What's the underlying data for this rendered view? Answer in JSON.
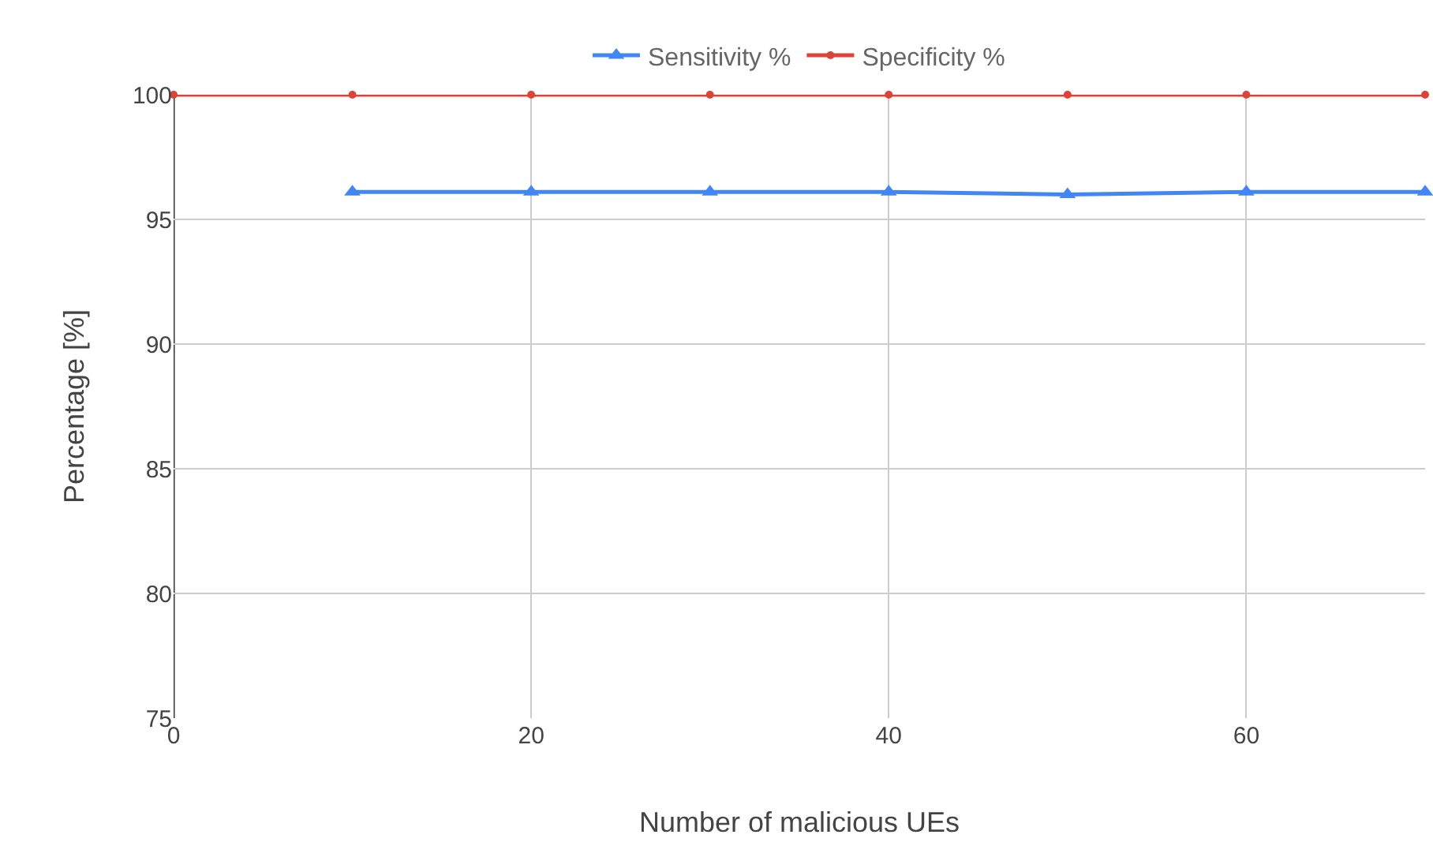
{
  "chart_data": {
    "type": "line",
    "xlabel": "Number of malicious UEs",
    "ylabel": "Percentage [%]",
    "series": [
      {
        "name": "Sensitivity %",
        "color": "#4285f4",
        "marker": "triangle",
        "x": [
          10,
          20,
          30,
          40,
          50,
          60,
          70
        ],
        "values": [
          96.1,
          96.1,
          96.1,
          96.1,
          96.0,
          96.1,
          96.1
        ]
      },
      {
        "name": "Specificity %",
        "color": "#db4437",
        "marker": "circle",
        "x": [
          0,
          10,
          20,
          30,
          40,
          50,
          60,
          70
        ],
        "values": [
          100,
          100,
          100,
          100,
          100,
          100,
          100,
          100
        ]
      }
    ],
    "xlim": [
      0,
      70
    ],
    "xticks": [
      0,
      20,
      40,
      60
    ],
    "ylim": [
      75,
      100
    ],
    "yticks": [
      75,
      80,
      85,
      90,
      95,
      100
    ],
    "grid": true,
    "legend": "top",
    "line_style": "solid"
  }
}
